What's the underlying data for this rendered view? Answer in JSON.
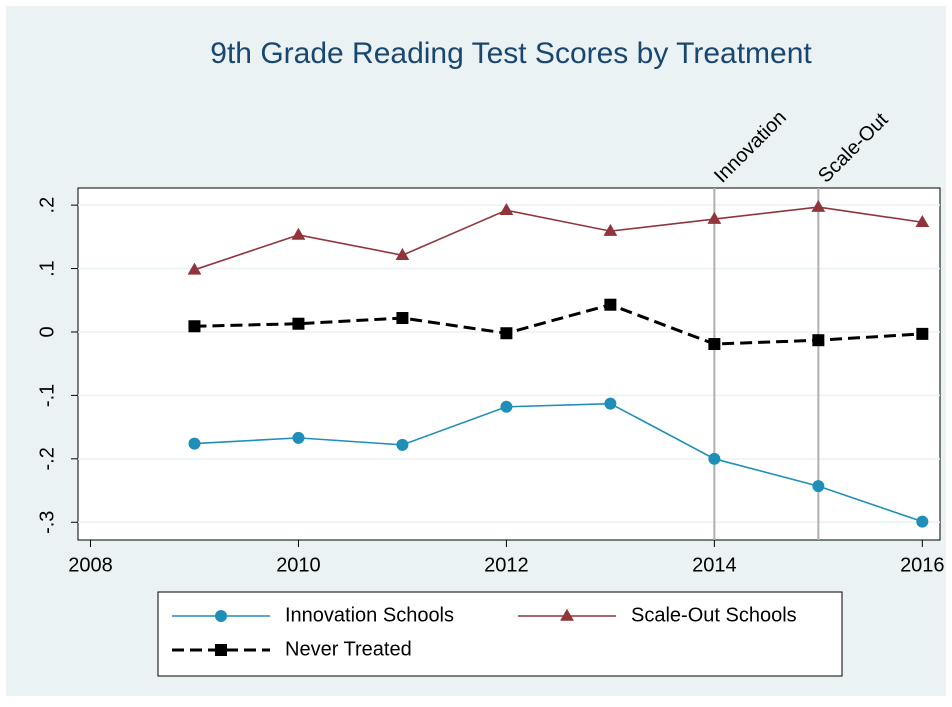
{
  "chart_data": {
    "type": "line",
    "title": "9th Grade Reading Test Scores by Treatment",
    "x": [
      2009,
      2010,
      2011,
      2012,
      2013,
      2014,
      2015,
      2016
    ],
    "series": [
      {
        "name": "Innovation Schools",
        "color": "#1f8fb8",
        "marker": "circle",
        "dash": false,
        "values": [
          -0.176,
          -0.167,
          -0.178,
          -0.118,
          -0.113,
          -0.2,
          -0.243,
          -0.299
        ]
      },
      {
        "name": "Scale-Out Schools",
        "color": "#90353b",
        "marker": "triangle",
        "dash": false,
        "values": [
          0.098,
          0.153,
          0.121,
          0.192,
          0.159,
          0.178,
          0.197,
          0.173
        ]
      },
      {
        "name": "Never Treated",
        "color": "#000000",
        "marker": "square",
        "dash": true,
        "values": [
          0.009,
          0.013,
          0.022,
          -0.002,
          0.043,
          -0.019,
          -0.013,
          -0.003
        ]
      }
    ],
    "xlim": [
      2007.88,
      2016.17
    ],
    "ylim": [
      -0.328,
      0.227
    ],
    "xticks": [
      2008,
      2010,
      2012,
      2014,
      2016
    ],
    "yticks": [
      {
        "value": -0.3,
        "label": "-.3"
      },
      {
        "value": -0.2,
        "label": "-.2"
      },
      {
        "value": -0.1,
        "label": "-.1"
      },
      0,
      {
        "value": 0.1,
        "label": ".1"
      },
      {
        "value": 0.2,
        "label": ".2"
      }
    ],
    "grid": true,
    "legend_position": "bottom",
    "annotations": [
      {
        "x": 2014,
        "label": "Innovation"
      },
      {
        "x": 2015,
        "label": "Scale-Out"
      }
    ]
  }
}
